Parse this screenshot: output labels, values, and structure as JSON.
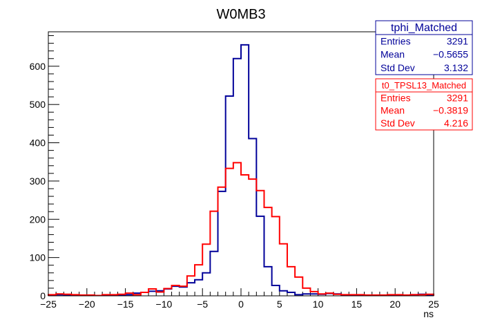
{
  "chart_data": {
    "type": "histogram",
    "title": "W0MB3",
    "xlabel": "ns",
    "ylabel": "",
    "xlim": [
      -25,
      25
    ],
    "ylim": [
      0,
      690
    ],
    "bin_width": 1,
    "x_ticks": [
      -25,
      -20,
      -15,
      -10,
      -5,
      0,
      5,
      10,
      15,
      20,
      25
    ],
    "y_ticks": [
      0,
      100,
      200,
      300,
      400,
      500,
      600
    ],
    "series": [
      {
        "name": "tphi_Matched",
        "color": "#000099",
        "values": [
          2,
          3,
          2,
          2,
          1,
          1,
          1,
          2,
          1,
          2,
          3,
          7,
          9,
          12,
          13,
          18,
          25,
          23,
          34,
          42,
          60,
          116,
          273,
          522,
          620,
          656,
          411,
          208,
          76,
          27,
          13,
          9,
          3,
          5,
          5,
          4,
          6,
          5,
          2,
          2,
          1,
          1,
          1,
          1,
          2,
          2,
          1,
          3,
          4,
          2
        ],
        "stats": {
          "rows": [
            {
              "label": "Entries",
              "value": "3291"
            },
            {
              "label": "Mean",
              "value": "−0.5655"
            },
            {
              "label": "Std Dev",
              "value": "3.132"
            }
          ]
        }
      },
      {
        "name": "t0_TPSL13_Matched",
        "color": "#ff0000",
        "values": [
          3,
          5,
          4,
          3,
          2,
          2,
          1,
          3,
          3,
          4,
          7,
          3,
          9,
          18,
          10,
          19,
          27,
          25,
          52,
          81,
          135,
          221,
          284,
          333,
          348,
          316,
          305,
          275,
          231,
          207,
          136,
          76,
          49,
          20,
          11,
          5,
          7,
          4,
          3,
          3,
          3,
          2,
          2,
          2,
          3,
          3,
          2,
          3,
          3,
          4
        ],
        "stats": {
          "rows": [
            {
              "label": "Entries",
              "value": "3291"
            },
            {
              "label": "Mean",
              "value": "−0.3819"
            },
            {
              "label": "Std Dev",
              "value": "4.216"
            }
          ]
        }
      }
    ],
    "grid": false,
    "legend": "top-right stats boxes"
  }
}
